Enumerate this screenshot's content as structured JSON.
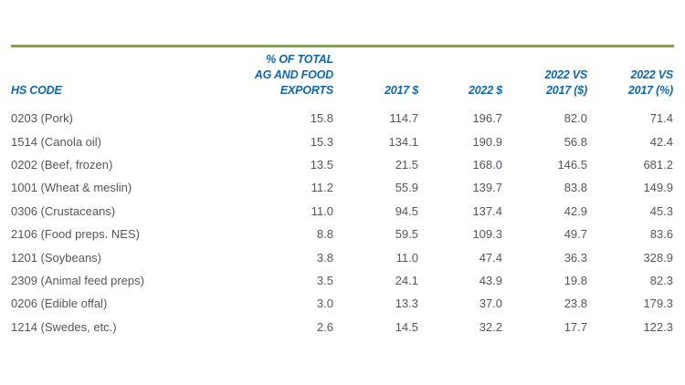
{
  "chart_data": {
    "type": "table",
    "title": "",
    "accent_color": "#82a73e",
    "header_text_color": "#0e68a8",
    "body_text_color": "#54565e",
    "background_color": "#ffffff",
    "columns": [
      {
        "label": "HS CODE",
        "align": "left"
      },
      {
        "label": "% OF TOTAL\nAG AND FOOD\nEXPORTS",
        "align": "right"
      },
      {
        "label": "2017 $",
        "align": "right"
      },
      {
        "label": "2022 $",
        "align": "right"
      },
      {
        "label": "2022 VS\n2017 ($)",
        "align": "right"
      },
      {
        "label": "2022 VS\n2017 (%)",
        "align": "right"
      }
    ],
    "rows": [
      [
        "0203 (Pork)",
        "15.8",
        "114.7",
        "196.7",
        "82.0",
        "71.4"
      ],
      [
        "1514 (Canola oil)",
        "15.3",
        "134.1",
        "190.9",
        "56.8",
        "42.4"
      ],
      [
        "0202 (Beef, frozen)",
        "13.5",
        "21.5",
        "168.0",
        "146.5",
        "681.2"
      ],
      [
        "1001 (Wheat & meslin)",
        "11.2",
        "55.9",
        "139.7",
        "83.8",
        "149.9"
      ],
      [
        "0306 (Crustaceans)",
        "11.0",
        "94.5",
        "137.4",
        "42.9",
        "45.3"
      ],
      [
        "2106 (Food preps. NES)",
        "8.8",
        "59.5",
        "109.3",
        "49.7",
        "83.6"
      ],
      [
        "1201 (Soybeans)",
        "3.8",
        "11.0",
        "47.4",
        "36.3",
        "328.9"
      ],
      [
        "2309 (Animal feed preps)",
        "3.5",
        "24.1",
        "43.9",
        "19.8",
        "82.3"
      ],
      [
        "0206 (Edible offal)",
        "3.0",
        "13.3",
        "37.0",
        "23.8",
        "179.3"
      ],
      [
        "1214 (Swedes, etc.)",
        "2.6",
        "14.5",
        "32.2",
        "17.7",
        "122.3"
      ]
    ]
  }
}
